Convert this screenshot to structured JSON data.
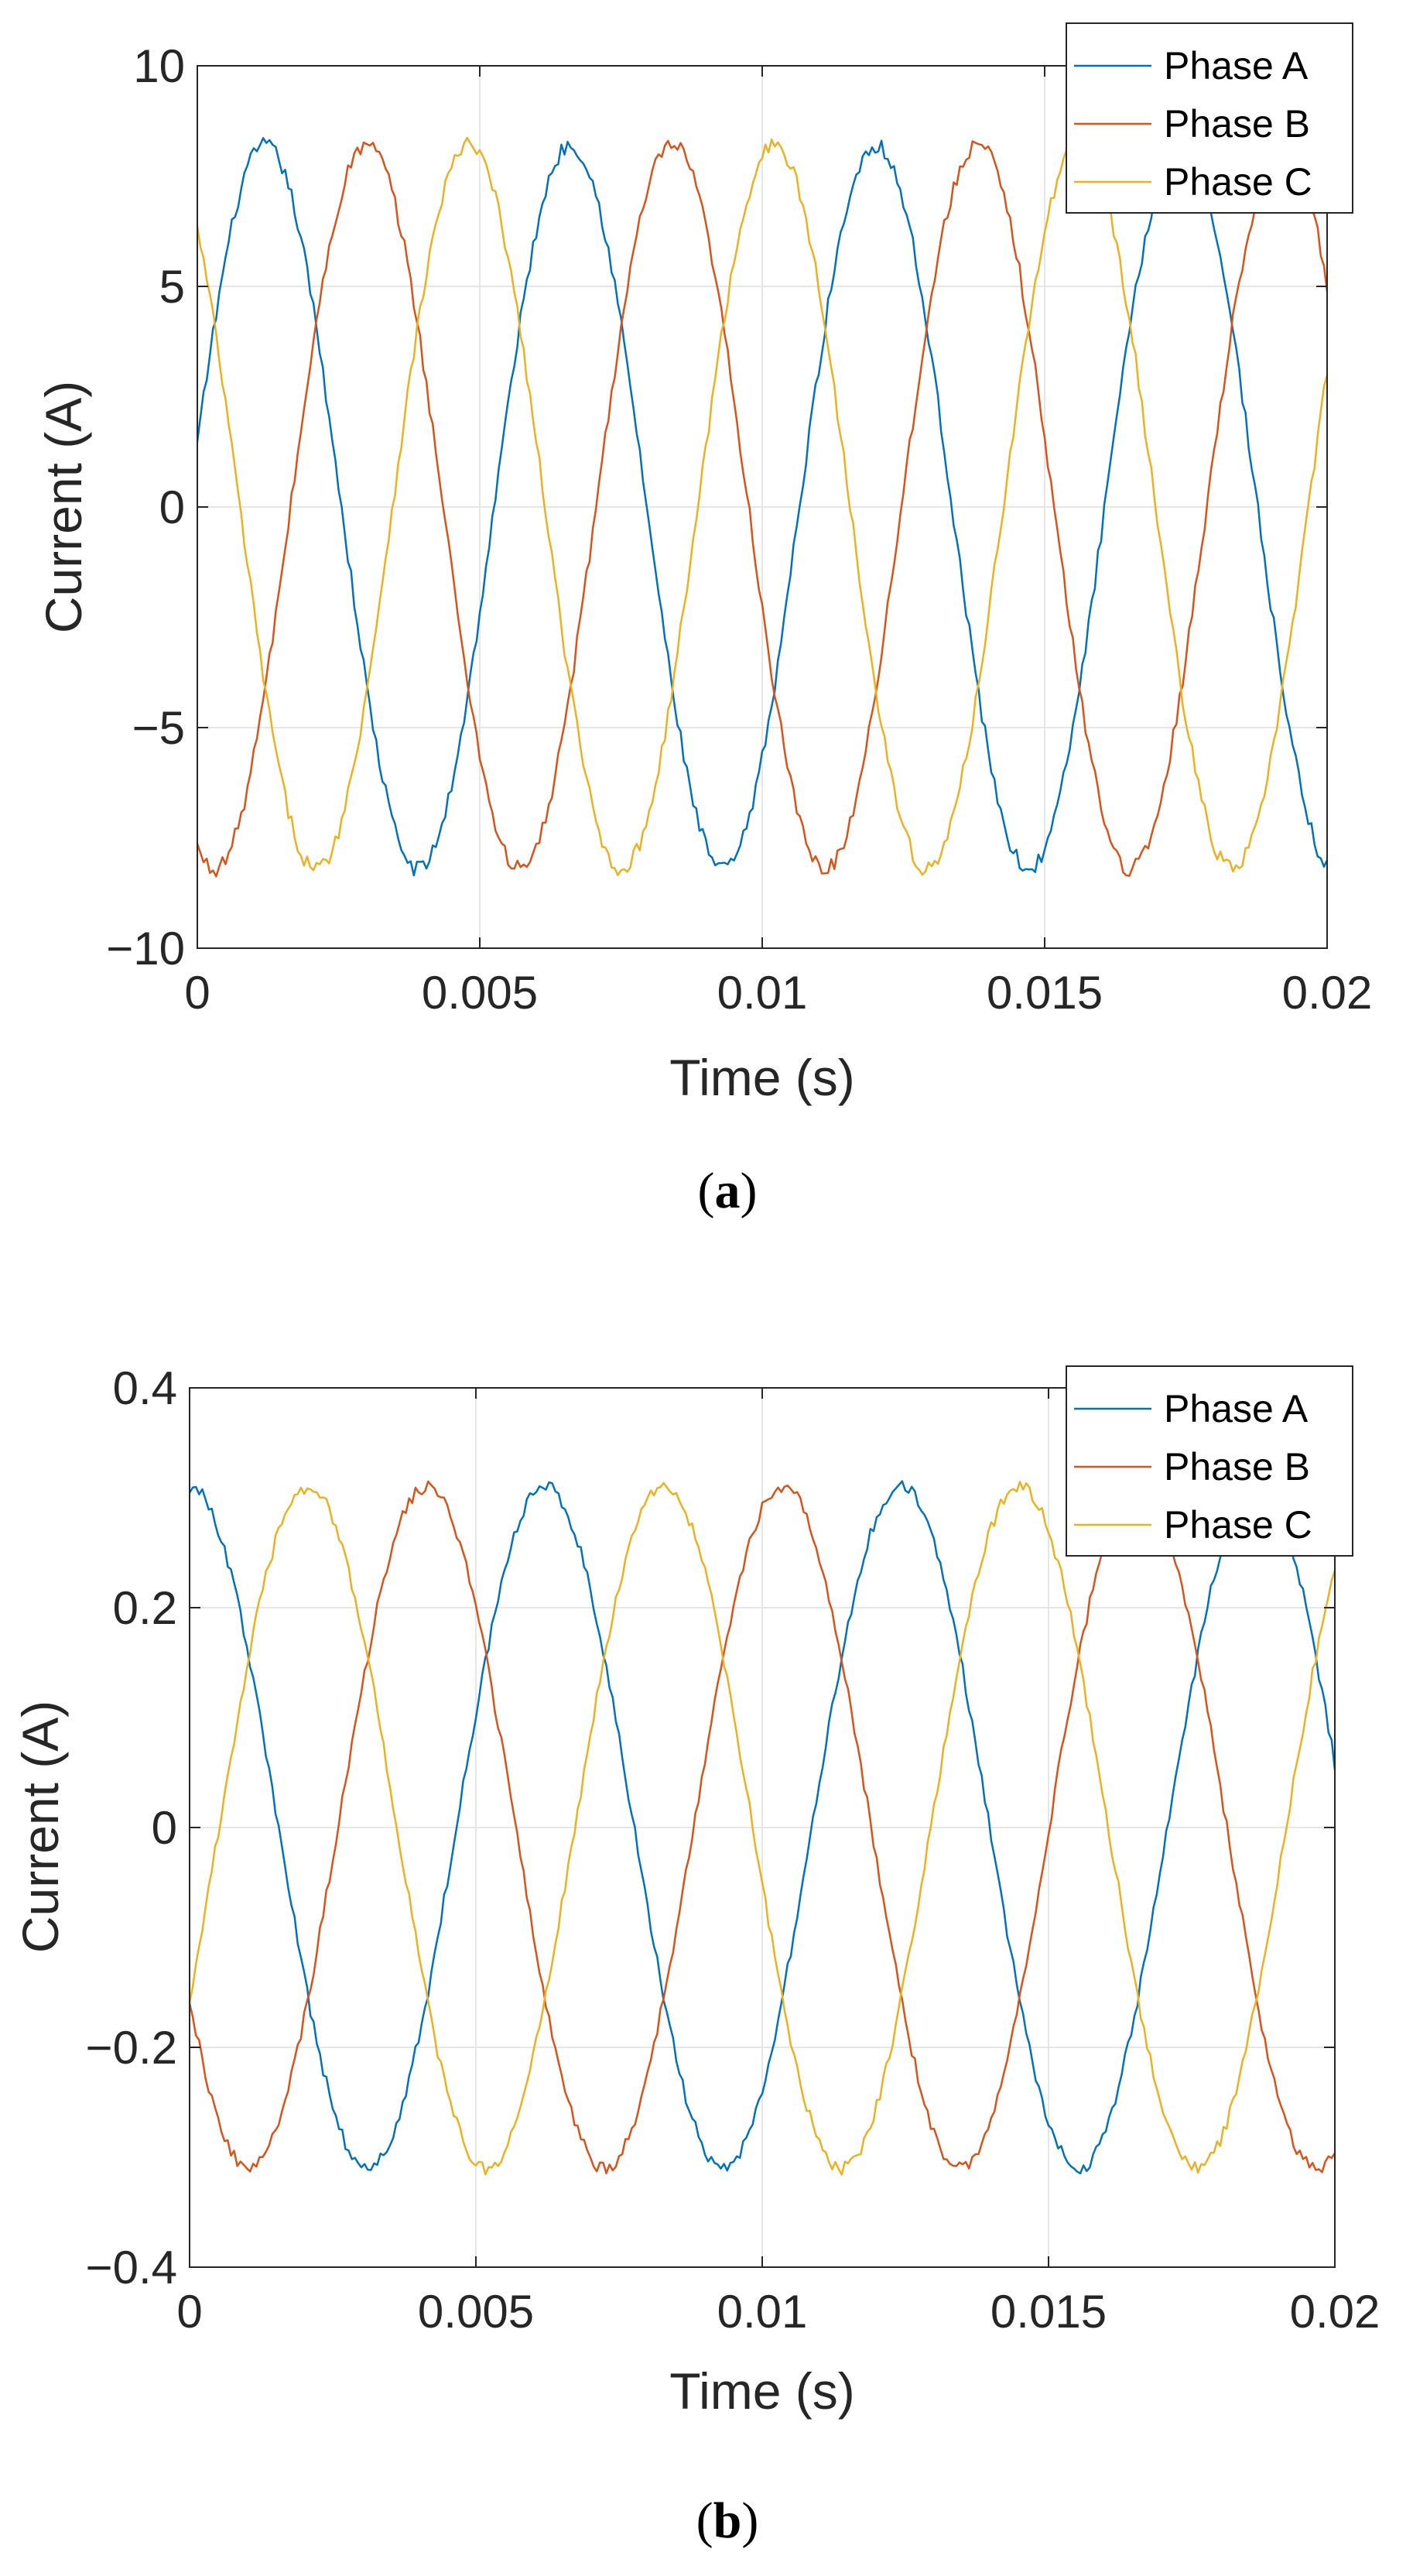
{
  "figure": {
    "panels": [
      {
        "caption_open": "(",
        "caption_letter": "a",
        "caption_close": ")"
      },
      {
        "caption_open": "(",
        "caption_letter": "b",
        "caption_close": ")"
      }
    ]
  },
  "chart_data": [
    {
      "type": "line",
      "title": "",
      "xlabel": "Time (s)",
      "ylabel": "Current (A)",
      "xlim": [
        0,
        0.02
      ],
      "ylim": [
        -10,
        10
      ],
      "xticks": [
        0,
        0.005,
        0.01,
        0.015,
        0.02
      ],
      "xtick_labels": [
        "0",
        "0.005",
        "0.01",
        "0.015",
        "0.02"
      ],
      "yticks": [
        -10,
        -5,
        0,
        5,
        10
      ],
      "ytick_labels": [
        "−10",
        "−5",
        "0",
        "5",
        "10"
      ],
      "grid": true,
      "legend_position": "top-right",
      "series": [
        {
          "name": "Phase A",
          "color": "#0072BD",
          "amplitude": 8.2,
          "frequency_hz": 185,
          "phase_deg": 10,
          "noise": 0.18
        },
        {
          "name": "Phase B",
          "color": "#D95319",
          "amplitude": 8.2,
          "frequency_hz": 185,
          "phase_deg": 250,
          "noise": 0.18
        },
        {
          "name": "Phase C",
          "color": "#EDB120",
          "amplitude": 8.2,
          "frequency_hz": 185,
          "phase_deg": 130,
          "noise": 0.18
        }
      ]
    },
    {
      "type": "line",
      "title": "",
      "xlabel": "Time (s)",
      "ylabel": "Current (A)",
      "xlim": [
        0,
        0.02
      ],
      "ylim": [
        -0.4,
        0.4
      ],
      "xticks": [
        0,
        0.005,
        0.01,
        0.015,
        0.02
      ],
      "xtick_labels": [
        "0",
        "0.005",
        "0.01",
        "0.015",
        "0.02"
      ],
      "yticks": [
        -0.4,
        -0.2,
        0,
        0.2,
        0.4
      ],
      "ytick_labels": [
        "−0.4",
        "−0.2",
        "0",
        "0.2",
        "0.4"
      ],
      "grid": true,
      "legend_position": "top-right",
      "series": [
        {
          "name": "Phase A",
          "color": "#0072BD",
          "amplitude": 0.31,
          "frequency_hz": 161,
          "phase_deg": 90,
          "noise": 0.006
        },
        {
          "name": "Phase B",
          "color": "#D95319",
          "amplitude": 0.31,
          "frequency_hz": 161,
          "phase_deg": 210,
          "noise": 0.006
        },
        {
          "name": "Phase C",
          "color": "#EDB120",
          "amplitude": 0.31,
          "frequency_hz": 161,
          "phase_deg": 330,
          "noise": 0.006
        }
      ]
    }
  ]
}
